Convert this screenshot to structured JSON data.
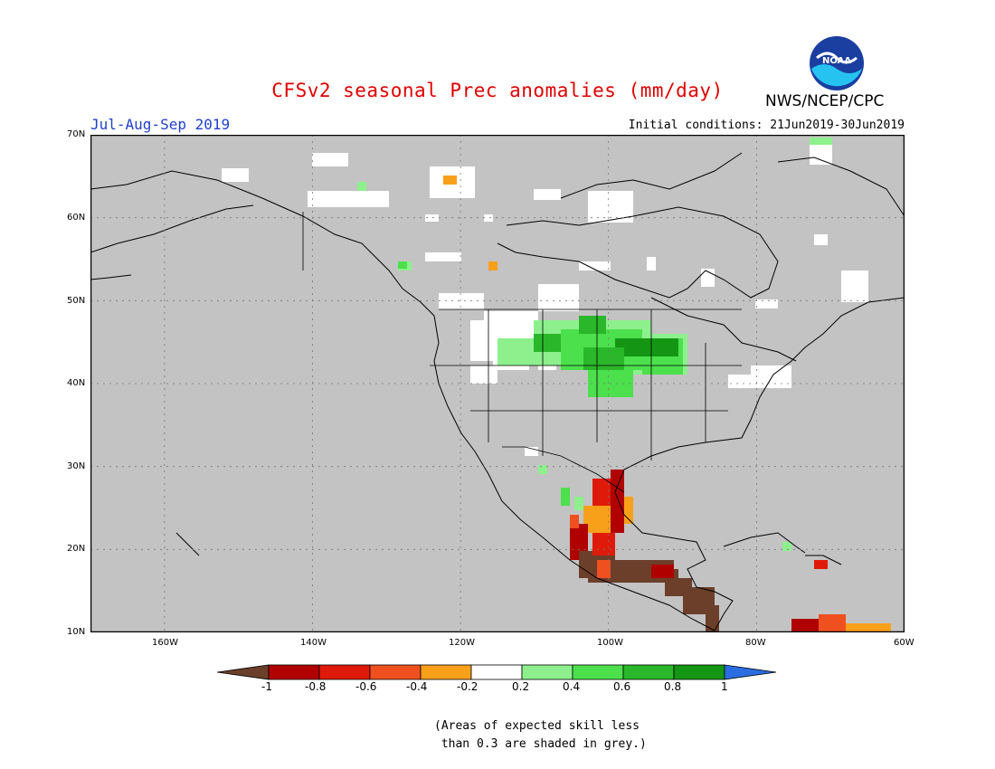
{
  "title": "CFSv2 seasonal Prec anomalies (mm/day)",
  "organization": "NWS/NCEP/CPC",
  "logo_text": "NOAA",
  "period": "Jul-Aug-Sep 2019",
  "initial_conditions": "Initial conditions: 21Jun2019-30Jun2019",
  "lat_labels": [
    "70N",
    "60N",
    "50N",
    "40N",
    "30N",
    "20N",
    "10N"
  ],
  "lon_labels": [
    "160W",
    "140W",
    "120W",
    "100W",
    "80W",
    "60W"
  ],
  "colorbar": {
    "labels": [
      "-1",
      "-0.8",
      "-0.6",
      "-0.4",
      "-0.2",
      "0.2",
      "0.4",
      "0.6",
      "0.8",
      "1"
    ],
    "colors": [
      "#6b3f2a",
      "#b00000",
      "#e01a0a",
      "#f05020",
      "#f9a01b",
      "#ffffff",
      "#8df08d",
      "#4ce04c",
      "#2ab72a",
      "#149614",
      "#2a6de0"
    ]
  },
  "footnote": "(Areas of expected skill less\n than 0.3 are shaded in grey.)",
  "map": {
    "skill_mask_color": "#c3c3c3",
    "projection": "lat-lon",
    "lon_range": [
      -170,
      -60
    ],
    "lat_range": [
      10,
      70
    ]
  }
}
